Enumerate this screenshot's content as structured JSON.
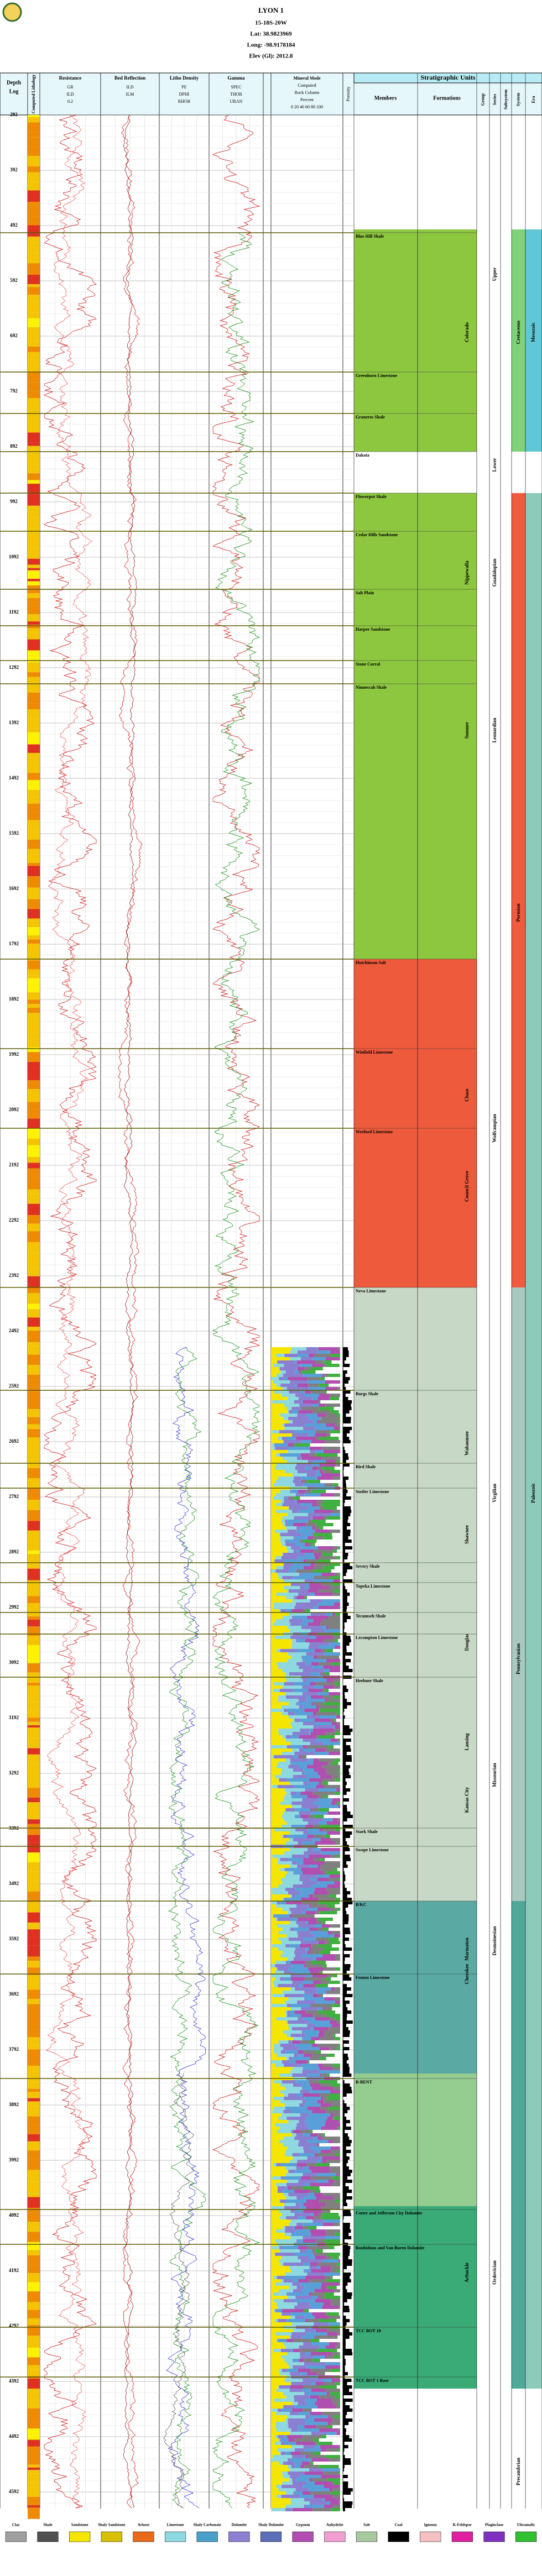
{
  "header": {
    "title": "LYON 1",
    "lines": [
      "15-18S-20W",
      "Lat: 38.9823969",
      "Long: -98.9178184",
      "Elev (Gl): 2012.8"
    ]
  },
  "columns": {
    "depth": [
      "Depth",
      "Log"
    ],
    "lithology": "Computed Lithology",
    "tracks": [
      "Resistance",
      "Bed Reflection",
      "Litho Density",
      "Gamma"
    ],
    "track_scales": [
      [
        "GR",
        "ILD",
        "0.2"
      ],
      [
        "ILD",
        "ILM"
      ],
      [
        "PE",
        "DPHI",
        "RHOB"
      ],
      [
        "SPEC",
        "THOR",
        "URAN"
      ]
    ],
    "mineral": [
      "Mineral Mode",
      "Computed",
      "Rock Column",
      "Percent",
      "0 20 40 60 80 100"
    ],
    "porosity": "Porosity",
    "strat_title": "Stratigraphic Units",
    "strat_heads": [
      "Members",
      "Formations",
      "Group",
      "Series",
      "Subsystem",
      "System",
      "Era"
    ]
  },
  "depth_labels": [
    292,
    392,
    492,
    592,
    692,
    792,
    892,
    992,
    1092,
    1192,
    1292,
    1392,
    1492,
    1592,
    1692,
    1792,
    1892,
    1992,
    2092,
    2192,
    2292,
    2392,
    2492,
    2592,
    2692,
    2792,
    2892,
    2992,
    3092,
    3192,
    3292,
    3392,
    3492,
    3592,
    3692,
    3792,
    3892,
    3992,
    4092,
    4192,
    4292,
    4392,
    4492,
    4592
  ],
  "members": [
    "Blue Hill Shale",
    "Greenhorn Limestone",
    "Graneros Shale",
    "Dakota",
    "Flowerpot Shale",
    "Cedar Hills Sandstone",
    "Salt Plain",
    "Harper Sandstone",
    "Stone Corral",
    "Ninnescah Shale",
    "Hutchinson Salt",
    "Winfield Limestone",
    "Wreford Limestone",
    "Neva Limestone",
    "Burgs Shale",
    "Bird Shale",
    "Stotler Limestone",
    "Severy Shale",
    "Topeka Limestone",
    "Tecumseh Shale",
    "Lecompton Limestone",
    "Heebner Shale",
    "Stark Shale",
    "Swope Limestone",
    "B/KC",
    "Fenton Limestone",
    "B-BENT",
    "Cotter and Jefferson City Dolomite",
    "Roubidoux and Van Buren Dolomite",
    "TCC BOT 10",
    "TCC BOT 1 Base"
  ],
  "formations": [
    "Colorado",
    "Nippewalla",
    "Sumner",
    "Chase",
    "Council Grove",
    "Wabaunsee",
    "Shawnee",
    "Douglas",
    "Lansing",
    "Kansas City",
    "Marmaton",
    "Cherokee",
    "Arbuckle"
  ],
  "series": [
    "Upper",
    "Lower",
    "Guadalupian",
    "Leonardian",
    "Wolfcampian",
    "Virgilian",
    "Missourian",
    "Desmoinesian",
    "Ordovician"
  ],
  "systems": [
    "Cretaceous",
    "Permian",
    "Pennsylvanian",
    "Precambrian"
  ],
  "eras": [
    "Mesozoic",
    "Paleozoic"
  ],
  "legend": [
    "Clay",
    "Shale",
    "Sandstone",
    "Shaly Sandstone",
    "Arkose",
    "Limestone",
    "Shaly Carbonate",
    "Dolomite",
    "Shaly Dolomite",
    "Gypsum",
    "Anhydrite",
    "Salt",
    "Coal",
    "Igneous",
    "K-Feldspar",
    "Plagioclase",
    "Ultramafic"
  ]
}
